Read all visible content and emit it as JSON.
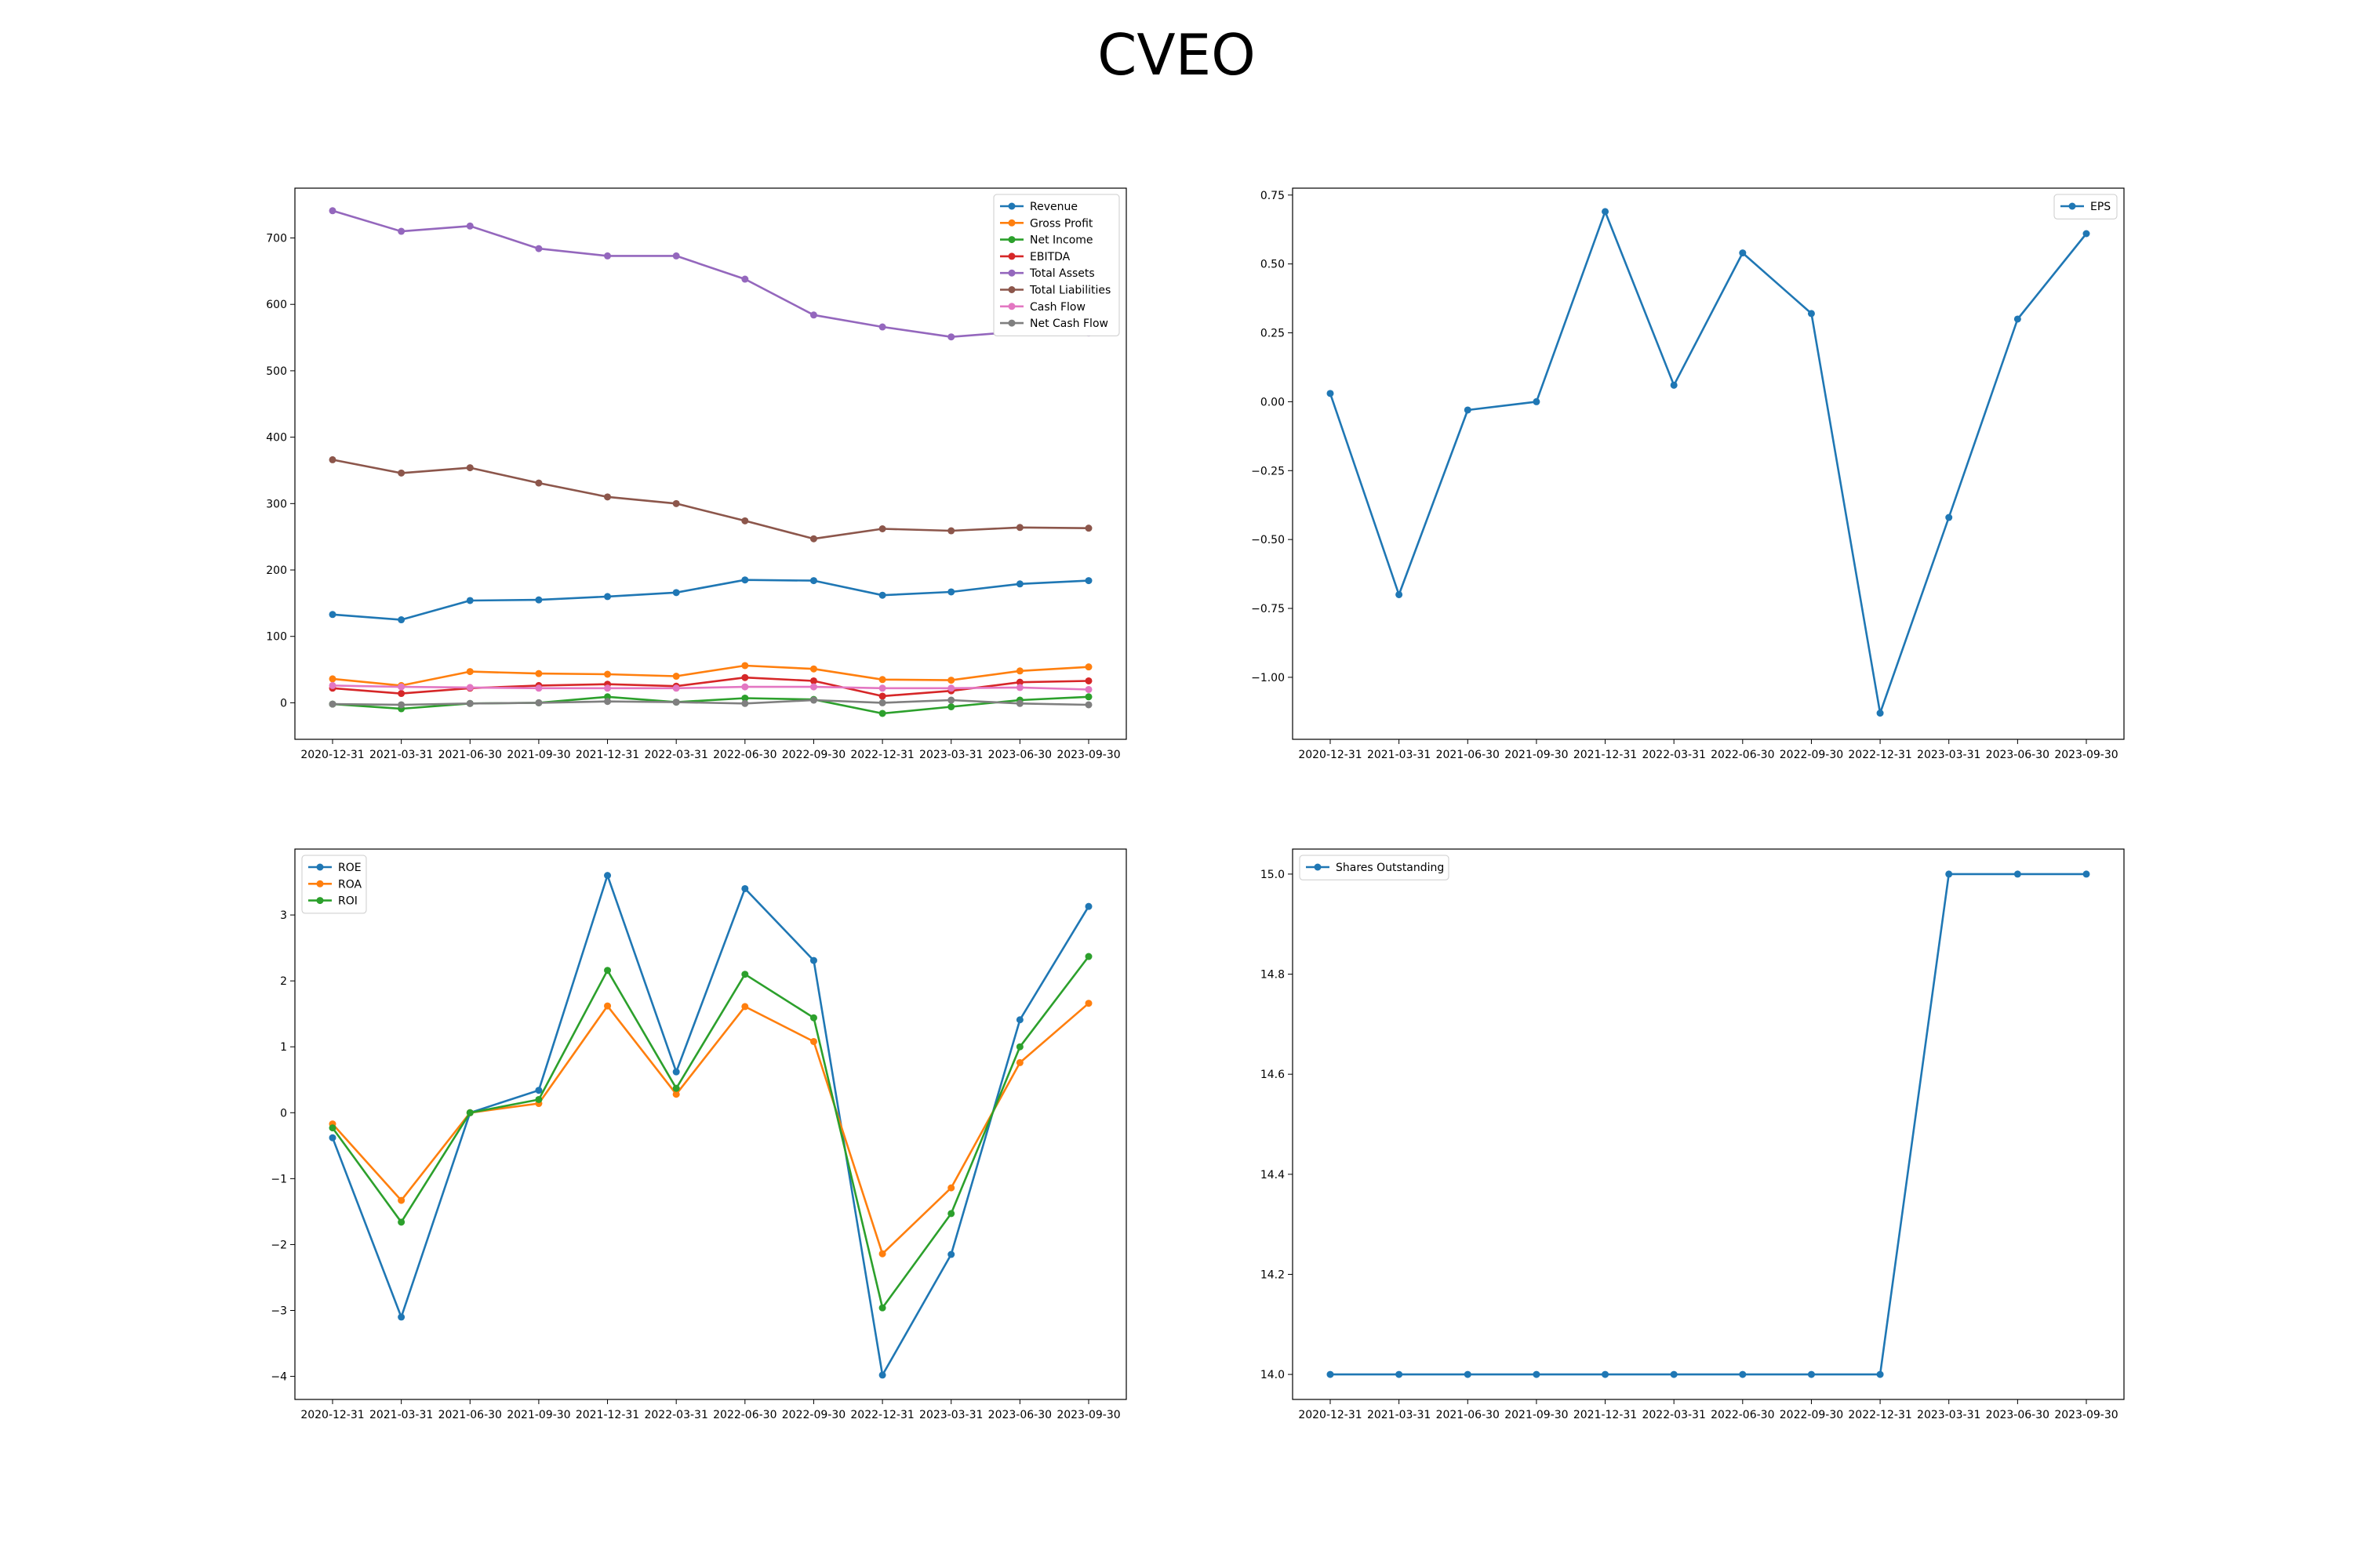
{
  "figure_title": "CVEO",
  "chart_data": [
    {
      "type": "line",
      "id": "financials",
      "x": [
        "2020-12-31",
        "2021-03-31",
        "2021-06-30",
        "2021-09-30",
        "2021-12-31",
        "2022-03-31",
        "2022-06-30",
        "2022-09-30",
        "2022-12-31",
        "2023-03-31",
        "2023-06-30",
        "2023-09-30"
      ],
      "ylim": [
        -55,
        775
      ],
      "yticks": [
        0,
        100,
        200,
        300,
        400,
        500,
        600,
        700
      ],
      "legend": "top-right",
      "grid": false,
      "series": [
        {
          "name": "Revenue",
          "color": "#1f77b4",
          "values": [
            133,
            125,
            154,
            155,
            160,
            166,
            185,
            184,
            162,
            167,
            179,
            184
          ]
        },
        {
          "name": "Gross Profit",
          "color": "#ff7f0e",
          "values": [
            36,
            26,
            47,
            44,
            43,
            40,
            56,
            51,
            35,
            34,
            48,
            54
          ]
        },
        {
          "name": "Net Income",
          "color": "#2ca02c",
          "values": [
            -2,
            -9,
            -1,
            0,
            9,
            1,
            7,
            5,
            -16,
            -6,
            4,
            9
          ]
        },
        {
          "name": "EBITDA",
          "color": "#d62728",
          "values": [
            22,
            14,
            22,
            26,
            28,
            25,
            38,
            33,
            10,
            18,
            31,
            33
          ]
        },
        {
          "name": "Total Assets",
          "color": "#9467bd",
          "values": [
            741,
            710,
            718,
            684,
            673,
            673,
            638,
            584,
            566,
            551,
            559,
            557
          ]
        },
        {
          "name": "Total Liabilities",
          "color": "#8c564b",
          "values": [
            366,
            346,
            354,
            331,
            310,
            300,
            274,
            247,
            262,
            259,
            264,
            263
          ]
        },
        {
          "name": "Cash Flow",
          "color": "#e377c2",
          "values": [
            26,
            24,
            23,
            22,
            22,
            22,
            24,
            24,
            22,
            22,
            23,
            20
          ]
        },
        {
          "name": "Net Cash Flow",
          "color": "#7f7f7f",
          "values": [
            -2,
            -3,
            -1,
            0,
            2,
            1,
            -1,
            4,
            0,
            4,
            -1,
            -3
          ]
        }
      ]
    },
    {
      "type": "line",
      "id": "eps",
      "x": [
        "2020-12-31",
        "2021-03-31",
        "2021-06-30",
        "2021-09-30",
        "2021-12-31",
        "2022-03-31",
        "2022-06-30",
        "2022-09-30",
        "2022-12-31",
        "2023-03-31",
        "2023-06-30",
        "2023-09-30"
      ],
      "ylim": [
        -1.225,
        0.775
      ],
      "yticks": [
        -1.0,
        -0.75,
        -0.5,
        -0.25,
        0.0,
        0.25,
        0.5,
        0.75
      ],
      "ytick_labels": [
        "−1.00",
        "−0.75",
        "−0.50",
        "−0.25",
        "0.00",
        "0.25",
        "0.50",
        "0.75"
      ],
      "legend": "top-right",
      "grid": false,
      "series": [
        {
          "name": "EPS",
          "color": "#1f77b4",
          "values": [
            0.03,
            -0.7,
            -0.03,
            0.0,
            0.69,
            0.06,
            0.54,
            0.32,
            -1.13,
            -0.42,
            0.3,
            0.61
          ]
        }
      ]
    },
    {
      "type": "line",
      "id": "ratios",
      "x": [
        "2020-12-31",
        "2021-03-31",
        "2021-06-30",
        "2021-09-30",
        "2021-12-31",
        "2022-03-31",
        "2022-06-30",
        "2022-09-30",
        "2022-12-31",
        "2023-03-31",
        "2023-06-30",
        "2023-09-30"
      ],
      "ylim": [
        -4.35,
        4.0
      ],
      "yticks": [
        -4,
        -3,
        -2,
        -1,
        0,
        1,
        2,
        3
      ],
      "ytick_labels": [
        "−4",
        "−3",
        "−2",
        "−1",
        "0",
        "1",
        "2",
        "3"
      ],
      "legend": "top-left",
      "grid": false,
      "series": [
        {
          "name": "ROE",
          "color": "#1f77b4",
          "values": [
            -0.38,
            -3.1,
            0.0,
            0.34,
            3.6,
            0.62,
            3.4,
            2.31,
            -3.98,
            -2.15,
            1.41,
            3.13
          ]
        },
        {
          "name": "ROA",
          "color": "#ff7f0e",
          "values": [
            -0.17,
            -1.33,
            0.0,
            0.14,
            1.62,
            0.28,
            1.61,
            1.08,
            -2.14,
            -1.14,
            0.76,
            1.66
          ]
        },
        {
          "name": "ROI",
          "color": "#2ca02c",
          "values": [
            -0.23,
            -1.66,
            0.0,
            0.2,
            2.16,
            0.37,
            2.1,
            1.44,
            -2.96,
            -1.53,
            1.0,
            2.37
          ]
        }
      ]
    },
    {
      "type": "line",
      "id": "shares",
      "x": [
        "2020-12-31",
        "2021-03-31",
        "2021-06-30",
        "2021-09-30",
        "2021-12-31",
        "2022-03-31",
        "2022-06-30",
        "2022-09-30",
        "2022-12-31",
        "2023-03-31",
        "2023-06-30",
        "2023-09-30"
      ],
      "ylim": [
        13.95,
        15.05
      ],
      "yticks": [
        14.0,
        14.2,
        14.4,
        14.6,
        14.8,
        15.0
      ],
      "ytick_labels": [
        "14.0",
        "14.2",
        "14.4",
        "14.6",
        "14.8",
        "15.0"
      ],
      "legend": "top-left",
      "grid": false,
      "series": [
        {
          "name": "Shares Outstanding",
          "color": "#1f77b4",
          "values": [
            14,
            14,
            14,
            14,
            14,
            14,
            14,
            14,
            14,
            15,
            15,
            15
          ]
        }
      ]
    }
  ]
}
